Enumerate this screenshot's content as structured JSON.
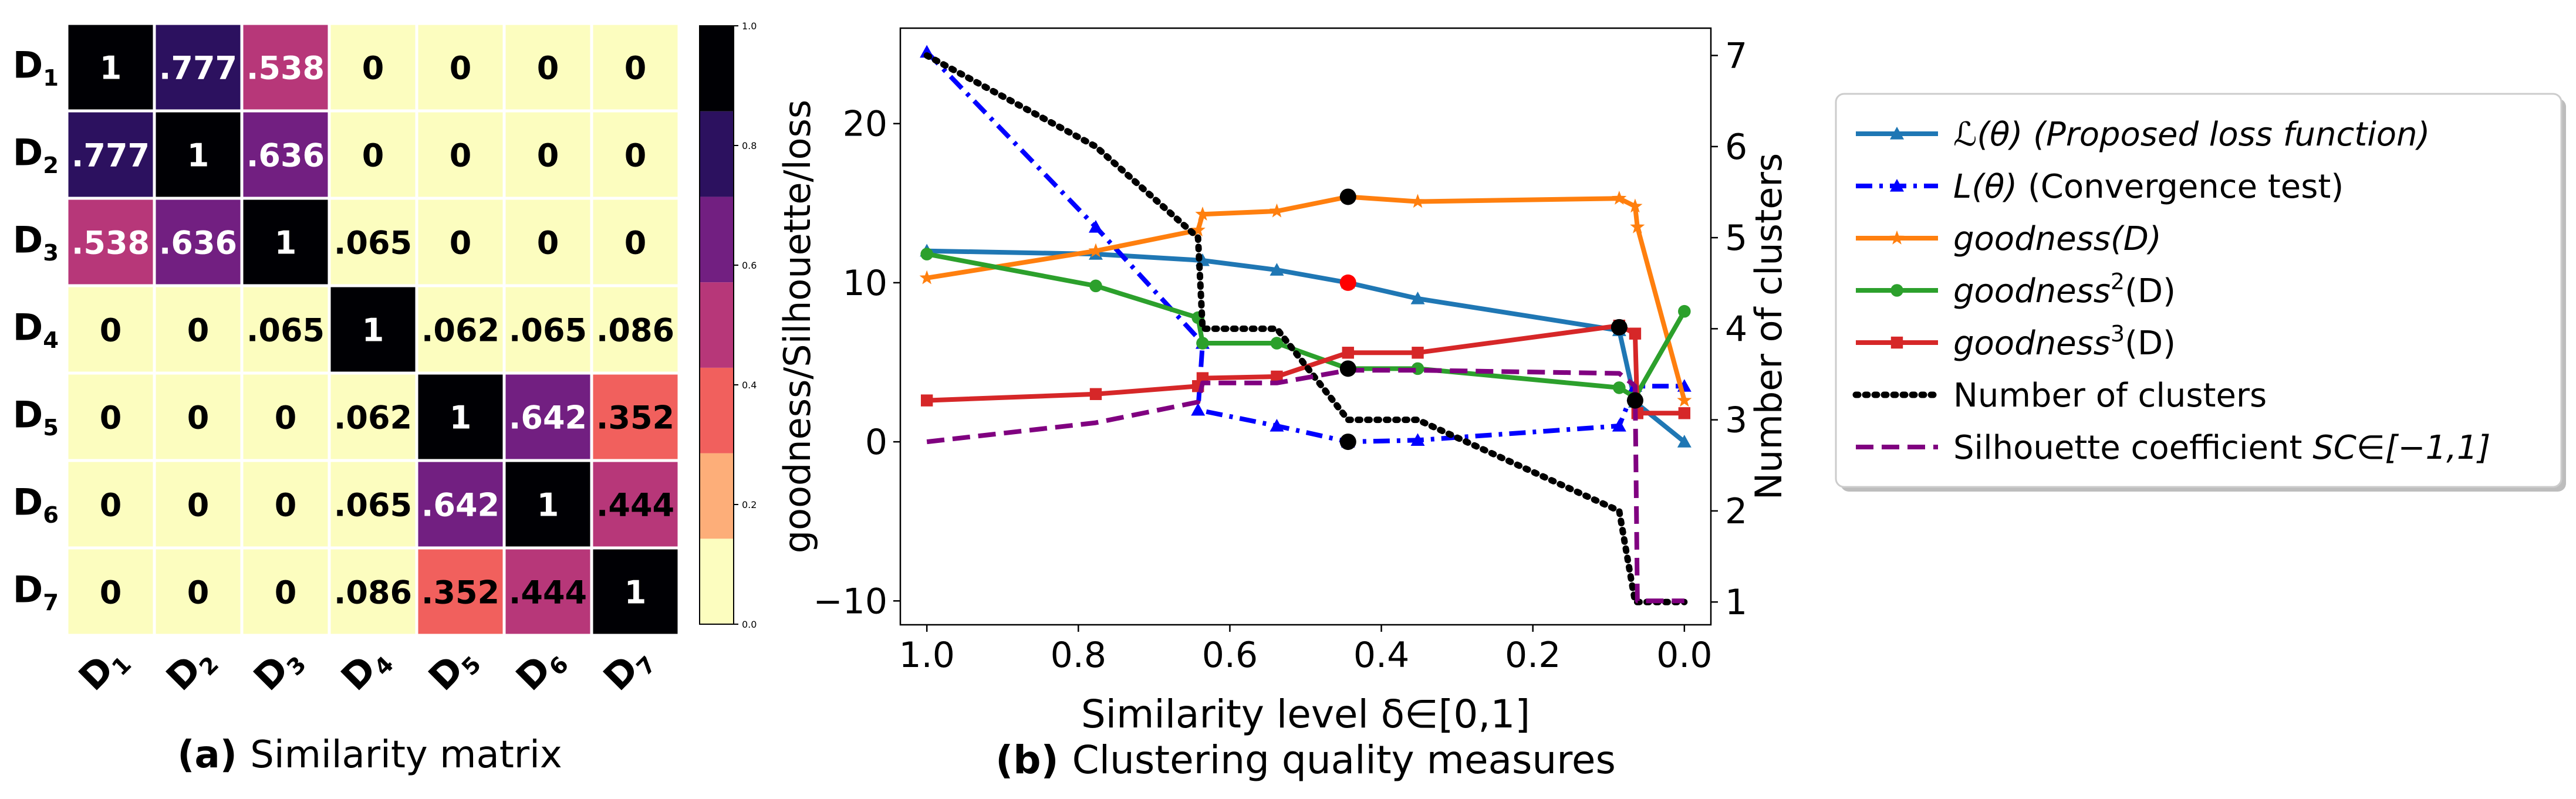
{
  "chart_data": [
    {
      "type": "heatmap",
      "caption_bold": "(a)",
      "caption": "Similarity matrix",
      "row_labels": [
        "D1",
        "D2",
        "D3",
        "D4",
        "D5",
        "D6",
        "D7"
      ],
      "col_labels": [
        "D1",
        "D2",
        "D3",
        "D4",
        "D5",
        "D6",
        "D7"
      ],
      "values": [
        [
          1,
          0.777,
          0.538,
          0,
          0,
          0,
          0
        ],
        [
          0.777,
          1,
          0.636,
          0,
          0,
          0,
          0
        ],
        [
          0.538,
          0.636,
          1,
          0.065,
          0,
          0,
          0
        ],
        [
          0,
          0,
          0.065,
          1,
          0.062,
          0.065,
          0.086
        ],
        [
          0,
          0,
          0,
          0.062,
          1,
          0.642,
          0.352
        ],
        [
          0,
          0,
          0,
          0.065,
          0.642,
          1,
          0.444
        ],
        [
          0,
          0,
          0,
          0.086,
          0.352,
          0.444,
          1
        ]
      ],
      "cell_labels": [
        [
          "1",
          ".777",
          ".538",
          "0",
          "0",
          "0",
          "0"
        ],
        [
          ".777",
          "1",
          ".636",
          "0",
          "0",
          "0",
          "0"
        ],
        [
          ".538",
          ".636",
          "1",
          ".065",
          "0",
          "0",
          "0"
        ],
        [
          "0",
          "0",
          ".065",
          "1",
          ".062",
          ".065",
          ".086"
        ],
        [
          "0",
          "0",
          "0",
          ".062",
          "1",
          ".642",
          ".352"
        ],
        [
          "0",
          "0",
          "0",
          ".065",
          ".642",
          "1",
          ".444"
        ],
        [
          "0",
          "0",
          "0",
          ".086",
          ".352",
          ".444",
          "1"
        ]
      ],
      "colorbar": {
        "range": [
          0.0,
          1.0
        ],
        "ticks": [
          "0.0",
          "0.2",
          "0.4",
          "0.6",
          "0.8",
          "1.0"
        ],
        "colors": [
          "#fcfdbf",
          "#fdae79",
          "#f1605d",
          "#b73779",
          "#721f81",
          "#2c115f",
          "#000004"
        ]
      }
    },
    {
      "type": "line",
      "caption_bold": "(b)",
      "caption": "Clustering quality measures",
      "xlabel": "Similarity level δ∈[0,1]",
      "ylabel": "goodness/Silhouette/loss",
      "ylabel_right": "Number of clusters",
      "xlim": [
        1.035,
        -0.035
      ],
      "ylim": [
        -11.5,
        26
      ],
      "ylim_right": [
        0.75,
        7.3
      ],
      "x_ticks": [
        "1.0",
        "0.8",
        "0.6",
        "0.4",
        "0.2",
        "0.0"
      ],
      "y_ticks": [
        "−10",
        "0",
        "10",
        "20"
      ],
      "y_ticks_right": [
        "1",
        "2",
        "3",
        "4",
        "5",
        "6",
        "7"
      ],
      "legend_position": "outside-right",
      "series": [
        {
          "name": "loss",
          "legend_main": "ℒ(θ)",
          "legend_paren": "(Proposed loss function)",
          "color": "#1f77b4",
          "style": "solid",
          "marker": "triangle",
          "x": [
            1.0,
            0.777,
            0.636,
            0.538,
            0.444,
            0.352,
            0.086,
            0.065,
            0.0
          ],
          "y": [
            12.0,
            11.8,
            11.4,
            10.8,
            10.0,
            9.0,
            7.0,
            2.5,
            0.0
          ]
        },
        {
          "name": "convergence",
          "legend_main": "L(θ)",
          "legend_paren": "(Convergence test)",
          "color": "#0000ff",
          "style": "dashdot",
          "marker": "triangle",
          "x": [
            1.0,
            0.777,
            0.636,
            0.642,
            0.538,
            0.444,
            0.352,
            0.086,
            0.065,
            0.0
          ],
          "y": [
            24.5,
            13.5,
            6.2,
            2.0,
            1.0,
            0.0,
            0.1,
            1.0,
            3.5,
            3.5
          ]
        },
        {
          "name": "goodness",
          "legend_main": "goodness(D)",
          "legend_paren": "",
          "color": "#ff7f0e",
          "style": "solid",
          "marker": "star",
          "x": [
            1.0,
            0.777,
            0.642,
            0.636,
            0.538,
            0.444,
            0.352,
            0.086,
            0.065,
            0.062,
            0.0
          ],
          "y": [
            10.3,
            12.0,
            13.3,
            14.3,
            14.5,
            15.4,
            15.1,
            15.3,
            14.8,
            13.5,
            2.6
          ]
        },
        {
          "name": "goodness2",
          "legend_main": "goodness",
          "legend_sup": "2",
          "legend_paren": "(D)",
          "color": "#2ca02c",
          "style": "solid",
          "marker": "circle",
          "x": [
            1.0,
            0.777,
            0.642,
            0.636,
            0.538,
            0.444,
            0.352,
            0.086,
            0.065,
            0.0
          ],
          "y": [
            11.8,
            9.8,
            7.8,
            6.2,
            6.2,
            4.6,
            4.6,
            3.4,
            2.8,
            8.2
          ]
        },
        {
          "name": "goodness3",
          "legend_main": "goodness",
          "legend_sup": "3",
          "legend_paren": "(D)",
          "color": "#d62728",
          "style": "solid",
          "marker": "square",
          "x": [
            1.0,
            0.777,
            0.642,
            0.636,
            0.538,
            0.444,
            0.352,
            0.086,
            0.065,
            0.062,
            0.0
          ],
          "y": [
            2.6,
            3.0,
            3.5,
            4.0,
            4.1,
            5.6,
            5.6,
            7.3,
            6.8,
            1.8,
            1.8
          ]
        },
        {
          "name": "clusters",
          "legend_main": "Number of clusters",
          "legend_paren": "",
          "color": "#000000",
          "style": "dotted",
          "marker": "none",
          "axis": "right",
          "x": [
            1.0,
            0.777,
            0.642,
            0.636,
            0.538,
            0.444,
            0.352,
            0.086,
            0.065,
            0.0
          ],
          "y": [
            7,
            6,
            5,
            4,
            4,
            3,
            3,
            2,
            1,
            1
          ]
        },
        {
          "name": "silhouette",
          "legend_main": "Silhouette coefficient",
          "legend_paren": "SC∈[−1,1]",
          "color": "#800080",
          "style": "dashed",
          "marker": "none",
          "x": [
            1.0,
            0.777,
            0.642,
            0.636,
            0.538,
            0.444,
            0.352,
            0.086,
            0.065,
            0.062,
            0.0
          ],
          "y": [
            0.0,
            1.2,
            2.5,
            3.7,
            3.7,
            4.5,
            4.5,
            4.3,
            3.5,
            -10.0,
            -10.0
          ]
        }
      ],
      "highlight_points": [
        {
          "x": 0.444,
          "y": 15.4,
          "color": "#000000"
        },
        {
          "x": 0.444,
          "y": 10.0,
          "color": "#ff0000"
        },
        {
          "x": 0.444,
          "y": 4.6,
          "color": "#000000"
        },
        {
          "x": 0.444,
          "y": 0.0,
          "color": "#000000"
        },
        {
          "x": 0.086,
          "y": 7.2,
          "color": "#000000"
        },
        {
          "x": 0.065,
          "y": 2.6,
          "color": "#000000"
        }
      ]
    }
  ]
}
